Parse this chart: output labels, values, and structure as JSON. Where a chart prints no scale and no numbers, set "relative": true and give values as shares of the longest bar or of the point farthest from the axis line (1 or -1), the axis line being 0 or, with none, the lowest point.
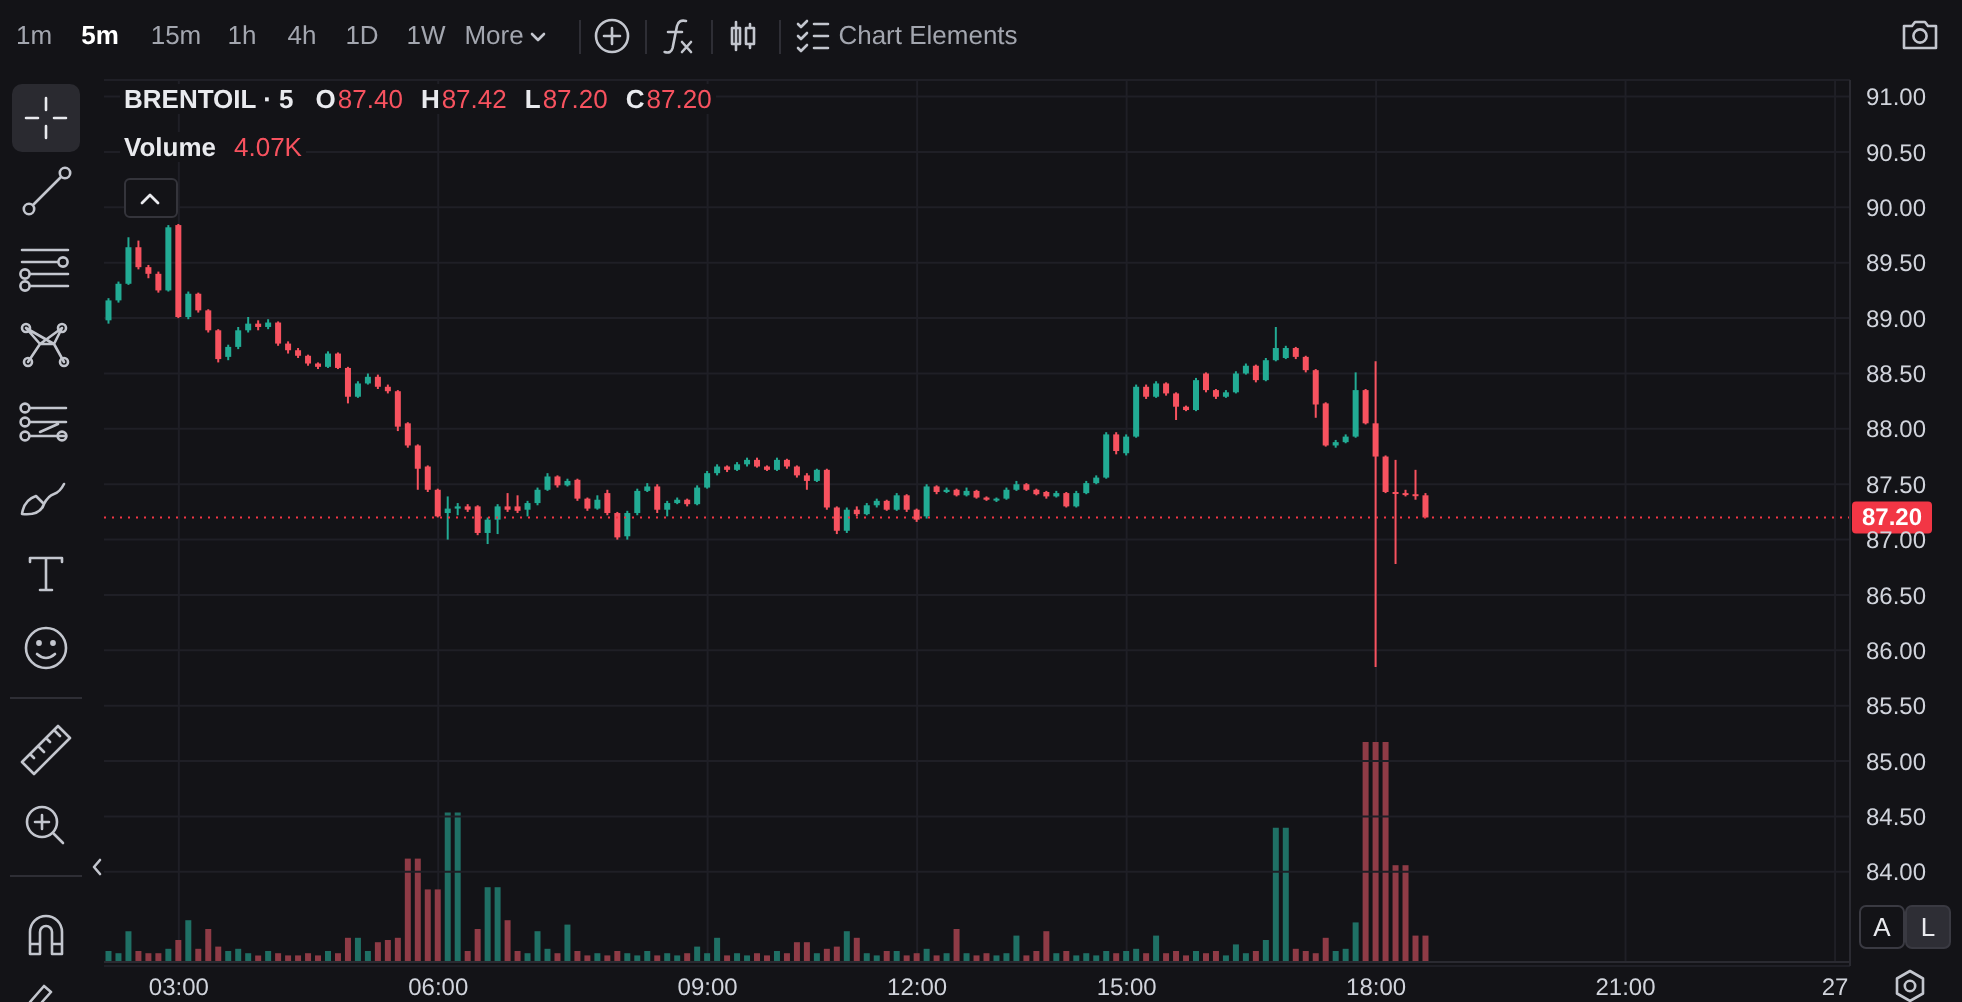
{
  "chart_data": [
    {
      "type": "candlestick",
      "title": "BRENTOIL · 5",
      "annotations": [
        "O",
        "87.40",
        "H",
        "87.42",
        "L",
        "87.20",
        "C",
        "87.20"
      ],
      "categories": [
        null,
        null,
        null,
        null,
        null,
        null,
        null,
        null,
        null,
        null,
        null,
        null,
        null,
        null,
        null,
        null,
        null,
        null,
        null,
        null,
        null,
        null,
        null,
        null,
        null,
        null,
        null,
        null,
        null,
        null,
        null,
        null,
        null,
        null,
        null,
        null,
        null,
        null,
        null,
        null,
        null,
        null,
        null,
        null,
        null,
        null,
        null,
        null,
        null,
        null,
        null,
        null,
        null,
        null,
        null,
        null,
        null,
        null,
        null,
        null,
        null,
        null,
        null,
        null,
        null,
        null,
        null,
        null,
        null,
        null,
        null,
        null,
        null,
        null,
        null,
        null,
        null,
        null,
        null,
        null,
        null,
        null,
        null,
        null,
        null,
        null,
        null,
        null,
        null,
        null,
        null,
        null,
        null,
        null,
        null,
        null,
        null,
        null,
        null,
        null,
        null,
        null,
        null,
        null,
        null,
        null,
        null,
        null,
        null,
        null,
        null,
        null,
        null,
        null,
        null,
        null,
        null,
        null,
        null,
        null,
        null,
        null,
        null,
        null,
        null,
        null,
        null,
        null,
        null,
        null,
        null,
        null,
        null,
        null,
        null,
        null,
        null,
        null,
        null,
        null,
        null,
        null,
        null,
        null,
        null,
        null,
        null,
        null,
        null,
        null,
        null,
        null,
        null,
        null,
        null,
        null,
        null,
        null,
        null,
        null,
        null,
        null,
        null,
        null,
        null,
        null,
        null,
        null,
        null,
        null,
        null,
        null,
        null,
        null,
        null
      ],
      "ohlc": [
        [
          88.98,
          89.18,
          88.95,
          89.16
        ],
        [
          89.16,
          89.33,
          89.14,
          89.31
        ],
        [
          89.31,
          89.73,
          89.3,
          89.64
        ],
        [
          89.64,
          89.7,
          89.44,
          89.46
        ],
        [
          89.46,
          89.48,
          89.36,
          89.4
        ],
        [
          89.4,
          89.42,
          89.23,
          89.25
        ],
        [
          89.25,
          89.84,
          89.24,
          89.82
        ],
        [
          89.84,
          89.85,
          89.0,
          89.01
        ],
        [
          89.01,
          89.24,
          88.99,
          89.22
        ],
        [
          89.22,
          89.23,
          89.05,
          89.07
        ],
        [
          89.07,
          89.08,
          88.87,
          88.89
        ],
        [
          88.89,
          88.9,
          88.6,
          88.63
        ],
        [
          88.65,
          88.76,
          88.62,
          88.74
        ],
        [
          88.74,
          88.92,
          88.72,
          88.89
        ],
        [
          88.89,
          89.01,
          88.87,
          88.95
        ],
        [
          88.95,
          88.98,
          88.89,
          88.92
        ],
        [
          88.92,
          88.99,
          88.9,
          88.96
        ],
        [
          88.96,
          88.97,
          88.75,
          88.77
        ],
        [
          88.77,
          88.79,
          88.68,
          88.71
        ],
        [
          88.71,
          88.73,
          88.64,
          88.66
        ],
        [
          88.66,
          88.67,
          88.57,
          88.59
        ],
        [
          88.59,
          88.6,
          88.54,
          88.56
        ],
        [
          88.56,
          88.7,
          88.55,
          88.68
        ],
        [
          88.68,
          88.69,
          88.54,
          88.55
        ],
        [
          88.55,
          88.56,
          88.23,
          88.29
        ],
        [
          88.29,
          88.43,
          88.28,
          88.41
        ],
        [
          88.41,
          88.5,
          88.4,
          88.47
        ],
        [
          88.47,
          88.49,
          88.36,
          88.38
        ],
        [
          88.38,
          88.4,
          88.32,
          88.34
        ],
        [
          88.34,
          88.35,
          87.98,
          88.02
        ],
        [
          88.05,
          88.06,
          87.83,
          87.85
        ],
        [
          87.85,
          87.86,
          87.45,
          87.64
        ],
        [
          87.66,
          87.67,
          87.43,
          87.45
        ],
        [
          87.45,
          87.46,
          87.2,
          87.21
        ],
        [
          87.24,
          87.39,
          87.0,
          87.28
        ],
        [
          87.28,
          87.33,
          87.22,
          87.3
        ],
        [
          87.3,
          87.32,
          87.25,
          87.27
        ],
        [
          87.3,
          87.31,
          87.04,
          87.06
        ],
        [
          87.06,
          87.2,
          86.96,
          87.18
        ],
        [
          87.18,
          87.32,
          87.05,
          87.3
        ],
        [
          87.3,
          87.42,
          87.25,
          87.27
        ],
        [
          87.3,
          87.4,
          87.24,
          87.26
        ],
        [
          87.27,
          87.35,
          87.21,
          87.33
        ],
        [
          87.33,
          87.47,
          87.31,
          87.45
        ],
        [
          87.45,
          87.6,
          87.44,
          87.57
        ],
        [
          87.57,
          87.58,
          87.47,
          87.49
        ],
        [
          87.49,
          87.55,
          87.48,
          87.53
        ],
        [
          87.54,
          87.55,
          87.35,
          87.37
        ],
        [
          87.37,
          87.38,
          87.26,
          87.28
        ],
        [
          87.28,
          87.4,
          87.27,
          87.36
        ],
        [
          87.42,
          87.45,
          87.22,
          87.24
        ],
        [
          87.24,
          87.25,
          87.0,
          87.02
        ],
        [
          87.03,
          87.26,
          87.0,
          87.24
        ],
        [
          87.24,
          87.46,
          87.22,
          87.44
        ],
        [
          87.44,
          87.51,
          87.43,
          87.48
        ],
        [
          87.48,
          87.5,
          87.24,
          87.27
        ],
        [
          87.27,
          87.35,
          87.21,
          87.33
        ],
        [
          87.33,
          87.38,
          87.32,
          87.36
        ],
        [
          87.36,
          87.37,
          87.3,
          87.32
        ],
        [
          87.32,
          87.49,
          87.31,
          87.47
        ],
        [
          87.47,
          87.62,
          87.46,
          87.6
        ],
        [
          87.6,
          87.68,
          87.58,
          87.66
        ],
        [
          87.66,
          87.67,
          87.61,
          87.63
        ],
        [
          87.63,
          87.7,
          87.62,
          87.68
        ],
        [
          87.68,
          87.74,
          87.66,
          87.72
        ],
        [
          87.72,
          87.74,
          87.65,
          87.66
        ],
        [
          87.66,
          87.67,
          87.62,
          87.63
        ],
        [
          87.63,
          87.74,
          87.62,
          87.72
        ],
        [
          87.72,
          87.73,
          87.64,
          87.66
        ],
        [
          87.66,
          87.67,
          87.56,
          87.58
        ],
        [
          87.58,
          87.6,
          87.45,
          87.53
        ],
        [
          87.53,
          87.64,
          87.52,
          87.63
        ],
        [
          87.63,
          87.64,
          87.27,
          87.29
        ],
        [
          87.29,
          87.3,
          87.05,
          87.08
        ],
        [
          87.08,
          87.29,
          87.06,
          87.27
        ],
        [
          87.27,
          87.3,
          87.21,
          87.23
        ],
        [
          87.23,
          87.33,
          87.22,
          87.31
        ],
        [
          87.31,
          87.37,
          87.29,
          87.35
        ],
        [
          87.35,
          87.36,
          87.26,
          87.27
        ],
        [
          87.27,
          87.42,
          87.26,
          87.4
        ],
        [
          87.4,
          87.41,
          87.25,
          87.27
        ],
        [
          87.27,
          87.28,
          87.16,
          87.18
        ],
        [
          87.21,
          87.5,
          87.19,
          87.48
        ],
        [
          87.48,
          87.49,
          87.41,
          87.43
        ],
        [
          87.43,
          87.47,
          87.42,
          87.45
        ],
        [
          87.45,
          87.46,
          87.39,
          87.4
        ],
        [
          87.4,
          87.47,
          87.39,
          87.44
        ],
        [
          87.44,
          87.45,
          87.37,
          87.38
        ],
        [
          87.38,
          87.39,
          87.35,
          87.36
        ],
        [
          87.36,
          87.38,
          87.34,
          87.37
        ],
        [
          87.37,
          87.47,
          87.36,
          87.45
        ],
        [
          87.45,
          87.53,
          87.44,
          87.5
        ],
        [
          87.5,
          87.51,
          87.44,
          87.45
        ],
        [
          87.45,
          87.46,
          87.4,
          87.41
        ],
        [
          87.43,
          87.44,
          87.37,
          87.39
        ],
        [
          87.39,
          87.44,
          87.38,
          87.42
        ],
        [
          87.42,
          87.43,
          87.29,
          87.3
        ],
        [
          87.3,
          87.44,
          87.29,
          87.42
        ],
        [
          87.42,
          87.53,
          87.41,
          87.51
        ],
        [
          87.51,
          87.58,
          87.5,
          87.56
        ],
        [
          87.56,
          87.97,
          87.55,
          87.95
        ],
        [
          87.95,
          87.97,
          87.77,
          87.8
        ],
        [
          87.78,
          87.95,
          87.76,
          87.93
        ],
        [
          87.93,
          88.4,
          87.92,
          88.38
        ],
        [
          88.38,
          88.4,
          88.27,
          88.29
        ],
        [
          88.29,
          88.43,
          88.28,
          88.41
        ],
        [
          88.41,
          88.42,
          88.3,
          88.32
        ],
        [
          88.32,
          88.33,
          88.08,
          88.2
        ],
        [
          88.2,
          88.21,
          88.16,
          88.17
        ],
        [
          88.17,
          88.46,
          88.16,
          88.44
        ],
        [
          88.5,
          88.51,
          88.33,
          88.35
        ],
        [
          88.35,
          88.36,
          88.27,
          88.29
        ],
        [
          88.29,
          88.35,
          88.28,
          88.33
        ],
        [
          88.33,
          88.52,
          88.32,
          88.5
        ],
        [
          88.5,
          88.59,
          88.49,
          88.57
        ],
        [
          88.57,
          88.58,
          88.42,
          88.44
        ],
        [
          88.44,
          88.64,
          88.43,
          88.62
        ],
        [
          88.62,
          88.92,
          88.61,
          88.73
        ],
        [
          88.64,
          88.75,
          88.63,
          88.73
        ],
        [
          88.73,
          88.74,
          88.63,
          88.65
        ],
        [
          88.65,
          88.66,
          88.51,
          88.53
        ],
        [
          88.53,
          88.54,
          88.1,
          88.22
        ],
        [
          88.23,
          88.24,
          87.84,
          87.85
        ],
        [
          87.85,
          87.9,
          87.83,
          87.88
        ],
        [
          87.88,
          87.95,
          87.87,
          87.93
        ],
        [
          87.93,
          88.51,
          87.92,
          88.35
        ],
        [
          88.35,
          88.36,
          88.04,
          88.05
        ],
        [
          88.05,
          88.61,
          85.85,
          87.75
        ],
        [
          87.75,
          87.76,
          87.42,
          87.43
        ],
        [
          87.43,
          87.72,
          86.78,
          87.42
        ],
        [
          87.42,
          87.45,
          87.39,
          87.41
        ],
        [
          87.41,
          87.63,
          87.36,
          87.4
        ],
        [
          87.4,
          87.42,
          87.2,
          87.2
        ],
        null,
        null,
        null,
        null,
        null,
        null,
        null,
        null,
        null,
        null,
        null,
        null,
        null,
        null,
        null,
        null,
        null,
        null,
        null,
        null,
        null,
        null,
        null,
        null,
        null,
        null,
        null,
        null,
        null,
        null,
        null,
        null,
        null,
        null,
        null,
        null,
        null,
        null,
        null,
        null,
        null,
        null
      ],
      "colors": [
        "#22ab94",
        "#22ab94",
        "#22ab94",
        "#f7525f",
        "#f7525f",
        "#f7525f",
        "#22ab94",
        "#f7525f",
        "#22ab94",
        "#f7525f",
        "#f7525f",
        "#f7525f",
        "#22ab94",
        "#22ab94",
        "#22ab94",
        "#f7525f",
        "#22ab94",
        "#f7525f",
        "#f7525f",
        "#f7525f",
        "#f7525f",
        "#f7525f",
        "#22ab94",
        "#f7525f",
        "#f7525f",
        "#22ab94",
        "#22ab94",
        "#f7525f",
        "#f7525f",
        "#f7525f",
        "#f7525f",
        "#f7525f",
        "#f7525f",
        "#f7525f",
        "#22ab94",
        "#22ab94",
        "#f7525f",
        "#f7525f",
        "#22ab94",
        "#22ab94",
        "#f7525f",
        "#f7525f",
        "#22ab94",
        "#22ab94",
        "#22ab94",
        "#f7525f",
        "#22ab94",
        "#f7525f",
        "#f7525f",
        "#22ab94",
        "#f7525f",
        "#f7525f",
        "#22ab94",
        "#22ab94",
        "#22ab94",
        "#f7525f",
        "#22ab94",
        "#22ab94",
        "#f7525f",
        "#22ab94",
        "#22ab94",
        "#22ab94",
        "#f7525f",
        "#22ab94",
        "#22ab94",
        "#f7525f",
        "#f7525f",
        "#22ab94",
        "#f7525f",
        "#f7525f",
        "#f7525f",
        "#22ab94",
        "#f7525f",
        "#f7525f",
        "#22ab94",
        "#f7525f",
        "#22ab94",
        "#22ab94",
        "#f7525f",
        "#22ab94",
        "#f7525f",
        "#f7525f",
        "#22ab94",
        "#f7525f",
        "#22ab94",
        "#f7525f",
        "#22ab94",
        "#f7525f",
        "#f7525f",
        "#22ab94",
        "#22ab94",
        "#22ab94",
        "#f7525f",
        "#f7525f",
        "#f7525f",
        "#22ab94",
        "#f7525f",
        "#22ab94",
        "#22ab94",
        "#22ab94",
        "#22ab94",
        "#f7525f",
        "#22ab94",
        "#22ab94",
        "#f7525f",
        "#22ab94",
        "#f7525f",
        "#f7525f",
        "#f7525f",
        "#22ab94",
        "#f7525f",
        "#f7525f",
        "#22ab94",
        "#22ab94",
        "#22ab94",
        "#f7525f",
        "#22ab94",
        "#22ab94",
        "#22ab94",
        "#f7525f",
        "#f7525f",
        "#f7525f",
        "#f7525f",
        "#22ab94",
        "#22ab94",
        "#22ab94",
        "#f7525f",
        "#f7525f",
        "#f7525f",
        "#f7525f",
        "#f7525f",
        "#f7525f",
        "#f7525f",
        null,
        null,
        null,
        null,
        null,
        null,
        null,
        null,
        null,
        null,
        null,
        null,
        null,
        null,
        null,
        null,
        null,
        null,
        null,
        null,
        null,
        null,
        null,
        null,
        null,
        null,
        null,
        null,
        null,
        null,
        null,
        null,
        null,
        null,
        null,
        null,
        null,
        null,
        null,
        null,
        null,
        null
      ],
      "ylim": [
        83.15,
        91.15
      ],
      "yticks": [
        {
          "value": 84,
          "label": "84.00"
        },
        {
          "value": 84.5,
          "label": "84.50"
        },
        {
          "value": 85,
          "label": "85.00"
        },
        {
          "value": 85.5,
          "label": "85.50"
        },
        {
          "value": 86,
          "label": "86.00"
        },
        {
          "value": 86.5,
          "label": "86.50"
        },
        {
          "value": 87,
          "label": "87.00"
        },
        {
          "value": 87.5,
          "label": "87.50"
        },
        {
          "value": 88,
          "label": "88.00"
        },
        {
          "value": 88.5,
          "label": "88.50"
        },
        {
          "value": 89,
          "label": "89.00"
        },
        {
          "value": 89.5,
          "label": "89.50"
        },
        {
          "value": 90,
          "label": "90.00"
        },
        {
          "value": 90.5,
          "label": "90.50"
        },
        {
          "value": 91,
          "label": "91.00"
        }
      ],
      "grid": "y",
      "tick_labels": "y",
      "ref_lines": [
        {
          "axis": "y",
          "value": 87.2,
          "label": "87.20",
          "color": "#f23645",
          "line_style": "dotted"
        }
      ]
    },
    {
      "type": "bar",
      "title": "Volume",
      "annotations": [
        "4.07K"
      ],
      "relative": true,
      "tick_labels": "x",
      "grid": "x",
      "categories": [
        null,
        null,
        null,
        null,
        null,
        null,
        null,
        "03:00",
        null,
        null,
        null,
        null,
        null,
        null,
        null,
        null,
        null,
        null,
        null,
        null,
        null,
        null,
        null,
        null,
        null,
        null,
        null,
        null,
        null,
        null,
        null,
        null,
        null,
        "06:00",
        null,
        null,
        null,
        null,
        null,
        null,
        null,
        null,
        null,
        null,
        null,
        null,
        null,
        null,
        null,
        null,
        null,
        null,
        null,
        null,
        null,
        null,
        null,
        null,
        null,
        null,
        "09:00",
        null,
        null,
        null,
        null,
        null,
        null,
        null,
        null,
        null,
        null,
        null,
        null,
        null,
        null,
        null,
        null,
        null,
        null,
        null,
        null,
        "12:00",
        null,
        null,
        null,
        null,
        null,
        null,
        null,
        null,
        null,
        null,
        null,
        null,
        null,
        null,
        null,
        null,
        null,
        null,
        null,
        null,
        "15:00",
        null,
        null,
        null,
        null,
        null,
        null,
        null,
        null,
        null,
        null,
        null,
        null,
        null,
        null,
        null,
        null,
        null,
        null,
        null,
        null,
        null,
        null,
        null,
        null,
        "18:00",
        null,
        null,
        null,
        null,
        null,
        null,
        null,
        null,
        null,
        null,
        null,
        null,
        null,
        null,
        null,
        null,
        null,
        null,
        null,
        null,
        null,
        null,
        null,
        null,
        "21:00",
        null,
        null,
        null,
        null,
        null,
        null,
        null,
        null,
        null,
        null,
        null,
        null,
        null,
        null,
        null,
        null,
        null,
        null,
        null,
        null,
        "27",
        null
      ],
      "values": [
        0.05,
        0.04,
        0.14,
        0.05,
        0.04,
        0.04,
        0.06,
        0.1,
        0.19,
        0.06,
        0.15,
        0.07,
        0.05,
        0.06,
        0.04,
        0.03,
        0.05,
        0.04,
        0.03,
        0.03,
        0.04,
        0.03,
        0.05,
        0.04,
        0.11,
        0.11,
        0.05,
        0.09,
        0.1,
        0.11,
        0.47,
        0.47,
        0.33,
        0.33,
        0.68,
        0.68,
        0.05,
        0.15,
        0.34,
        0.34,
        0.19,
        0.05,
        0.04,
        0.14,
        0.06,
        0.04,
        0.17,
        0.05,
        0.03,
        0.04,
        0.03,
        0.05,
        0.04,
        0.03,
        0.05,
        0.03,
        0.04,
        0.03,
        0.04,
        0.07,
        0.04,
        0.11,
        0.03,
        0.04,
        0.03,
        0.04,
        0.03,
        0.05,
        0.04,
        0.09,
        0.09,
        0.04,
        0.06,
        0.07,
        0.14,
        0.11,
        0.04,
        0.03,
        0.05,
        0.05,
        0.03,
        0.04,
        0.06,
        0.03,
        0.04,
        0.15,
        0.04,
        0.03,
        0.04,
        0.03,
        0.04,
        0.12,
        0.03,
        0.05,
        0.14,
        0.04,
        0.05,
        0.03,
        0.04,
        0.03,
        0.05,
        0.04,
        0.05,
        0.06,
        0.04,
        0.12,
        0.04,
        0.05,
        0.03,
        0.05,
        0.04,
        0.05,
        0.03,
        0.08,
        0.04,
        0.05,
        0.1,
        0.61,
        0.61,
        0.06,
        0.05,
        0.04,
        0.11,
        0.05,
        0.06,
        0.18,
        1,
        1,
        1,
        0.44,
        0.44,
        0.12,
        0.12,
        null,
        null,
        null,
        null,
        null,
        null,
        null,
        null,
        null,
        null,
        null,
        null,
        null,
        null,
        null,
        null,
        null,
        null,
        null,
        null,
        null,
        null,
        null,
        null,
        null,
        null,
        null,
        null,
        null,
        null,
        null,
        null,
        null,
        null,
        null,
        null,
        null,
        null,
        null,
        null,
        null,
        null
      ],
      "colors": [
        "#1f7065",
        "#1f7065",
        "#1f7065",
        "#8f3b46",
        "#8f3b46",
        "#8f3b46",
        "#1f7065",
        "#8f3b46",
        "#1f7065",
        "#8f3b46",
        "#8f3b46",
        "#8f3b46",
        "#1f7065",
        "#1f7065",
        "#1f7065",
        "#8f3b46",
        "#1f7065",
        "#8f3b46",
        "#8f3b46",
        "#8f3b46",
        "#8f3b46",
        "#8f3b46",
        "#1f7065",
        "#8f3b46",
        "#8f3b46",
        "#1f7065",
        "#1f7065",
        "#8f3b46",
        "#8f3b46",
        "#8f3b46",
        "#8f3b46",
        "#8f3b46",
        "#8f3b46",
        "#8f3b46",
        "#1f7065",
        "#1f7065",
        "#8f3b46",
        "#8f3b46",
        "#1f7065",
        "#1f7065",
        "#8f3b46",
        "#8f3b46",
        "#1f7065",
        "#1f7065",
        "#1f7065",
        "#8f3b46",
        "#1f7065",
        "#8f3b46",
        "#8f3b46",
        "#1f7065",
        "#8f3b46",
        "#8f3b46",
        "#1f7065",
        "#1f7065",
        "#1f7065",
        "#8f3b46",
        "#1f7065",
        "#1f7065",
        "#8f3b46",
        "#1f7065",
        "#1f7065",
        "#1f7065",
        "#8f3b46",
        "#1f7065",
        "#1f7065",
        "#8f3b46",
        "#8f3b46",
        "#1f7065",
        "#8f3b46",
        "#8f3b46",
        "#8f3b46",
        "#1f7065",
        "#8f3b46",
        "#8f3b46",
        "#1f7065",
        "#8f3b46",
        "#1f7065",
        "#1f7065",
        "#8f3b46",
        "#1f7065",
        "#8f3b46",
        "#8f3b46",
        "#1f7065",
        "#8f3b46",
        "#1f7065",
        "#8f3b46",
        "#1f7065",
        "#8f3b46",
        "#8f3b46",
        "#1f7065",
        "#1f7065",
        "#1f7065",
        "#8f3b46",
        "#8f3b46",
        "#8f3b46",
        "#1f7065",
        "#8f3b46",
        "#1f7065",
        "#1f7065",
        "#1f7065",
        "#1f7065",
        "#8f3b46",
        "#1f7065",
        "#1f7065",
        "#8f3b46",
        "#1f7065",
        "#8f3b46",
        "#8f3b46",
        "#8f3b46",
        "#1f7065",
        "#8f3b46",
        "#8f3b46",
        "#1f7065",
        "#1f7065",
        "#1f7065",
        "#8f3b46",
        "#1f7065",
        "#1f7065",
        "#1f7065",
        "#8f3b46",
        "#8f3b46",
        "#8f3b46",
        "#8f3b46",
        "#1f7065",
        "#1f7065",
        "#1f7065",
        "#8f3b46",
        "#8f3b46",
        "#8f3b46",
        "#8f3b46",
        "#8f3b46",
        "#8f3b46",
        "#8f3b46",
        null,
        null,
        null,
        null,
        null,
        null,
        null,
        null,
        null,
        null,
        null,
        null,
        null,
        null,
        null,
        null,
        null,
        null,
        null,
        null,
        null,
        null,
        null,
        null,
        null,
        null,
        null,
        null,
        null,
        null,
        null,
        null,
        null,
        null,
        null,
        null,
        null,
        null,
        null,
        null,
        null,
        null
      ]
    },
    {
      "type": "other",
      "annotations": [
        "1m",
        "5m",
        "15m",
        "1h",
        "4h",
        "1D",
        "1W",
        "More",
        "Chart Elements",
        "A",
        "L"
      ]
    }
  ]
}
